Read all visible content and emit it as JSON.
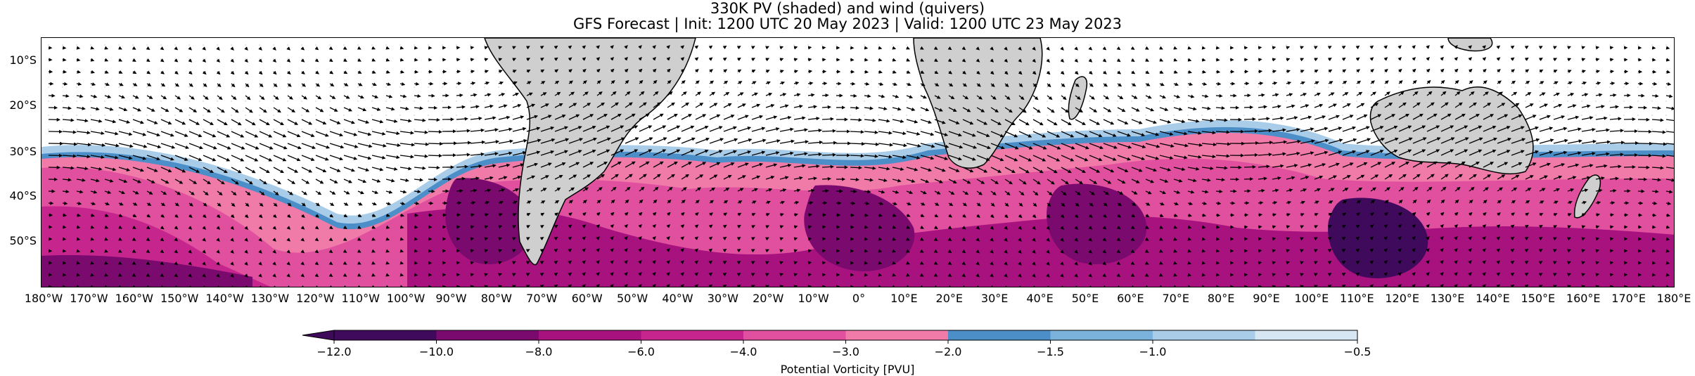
{
  "title": "330K PV (shaded) and wind (quivers)",
  "subtitle": "GFS Forecast | Init: 1200 UTC 20 May 2023 | Valid: 1200 UTC 23 May 2023",
  "lat_labels": [
    "10°S",
    "20°S",
    "30°S",
    "40°S",
    "50°S"
  ],
  "lon_labels": [
    "180°W",
    "170°W",
    "160°W",
    "150°W",
    "140°W",
    "130°W",
    "120°W",
    "110°W",
    "100°W",
    "90°W",
    "80°W",
    "70°W",
    "60°W",
    "50°W",
    "40°W",
    "30°W",
    "20°W",
    "10°W",
    "0°",
    "10°E",
    "20°E",
    "30°E",
    "40°E",
    "50°E",
    "60°E",
    "70°E",
    "80°E",
    "90°E",
    "100°E",
    "110°E",
    "120°E",
    "130°E",
    "140°E",
    "150°E",
    "160°E",
    "170°E",
    "180°E"
  ],
  "colorbar": {
    "label": "Potential Vorticity [PVU]",
    "ticks": [
      "−12.0",
      "−10.0",
      "−8.0",
      "−6.0",
      "−4.0",
      "−3.0",
      "−2.0",
      "−1.5",
      "−1.0",
      "−0.5"
    ],
    "colors": [
      "#3f0a5c",
      "#7a0a6e",
      "#a8127f",
      "#c7258e",
      "#e0509e",
      "#f07aa8",
      "#4b8ec8",
      "#7ab2dc",
      "#a9cde9",
      "#d6e6f3"
    ]
  },
  "chart_data": {
    "type": "heatmap",
    "extent": {
      "lon": [
        -180,
        180
      ],
      "lat": [
        -60,
        -5
      ]
    },
    "field": "330K potential vorticity",
    "units": "PVU",
    "levels": [
      -12.0,
      -10.0,
      -8.0,
      -6.0,
      -4.0,
      -3.0,
      -2.0,
      -1.5,
      -1.0,
      -0.5
    ],
    "overlay": "wind quivers",
    "land_color": "#cfcfcf"
  }
}
